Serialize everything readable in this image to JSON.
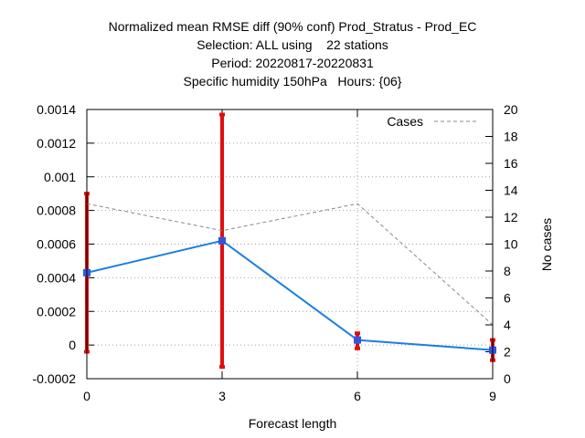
{
  "chart_data": {
    "type": "line",
    "title_lines": [
      "Normalized mean RMSE diff (90% conf) Prod_Stratus - Prod_EC",
      "Selection: ALL using    22 stations",
      "Period: 20220817-20220831",
      "Specific humidity 150hPa   Hours: {06}"
    ],
    "xlabel": "Forecast length",
    "ylabel_right": "No cases",
    "x": [
      0,
      3,
      6,
      9
    ],
    "x_ticks": [
      "0",
      "3",
      "6",
      "9"
    ],
    "xlim": [
      0,
      9
    ],
    "y_left_ticks": [
      "-0.0002",
      "0",
      "0.0002",
      "0.0004",
      "0.0006",
      "0.0008",
      "0.001",
      "0.0012",
      "0.0014"
    ],
    "y_left_lim": [
      -0.0002,
      0.0014
    ],
    "y_right_ticks": [
      "0",
      "2",
      "4",
      "6",
      "8",
      "10",
      "12",
      "14",
      "16",
      "18",
      "20"
    ],
    "y_right_lim": [
      0,
      20
    ],
    "grid": true,
    "legend_position": "top-right",
    "series": [
      {
        "role": "mean-diff",
        "axis": "left",
        "color": "#1a7fe0",
        "marker_color": "#3355dd",
        "values": [
          0.00043,
          0.00062,
          3e-05,
          -3e-05
        ],
        "err_low": [
          -4e-05,
          -0.00013,
          -2e-05,
          -9e-05
        ],
        "err_high": [
          0.0009,
          0.00137,
          7e-05,
          3e-05
        ],
        "err_color": "#e01010"
      },
      {
        "name": "Cases",
        "axis": "right",
        "color": "#888888",
        "dashed": true,
        "values": [
          13,
          11,
          13,
          4
        ]
      }
    ]
  }
}
